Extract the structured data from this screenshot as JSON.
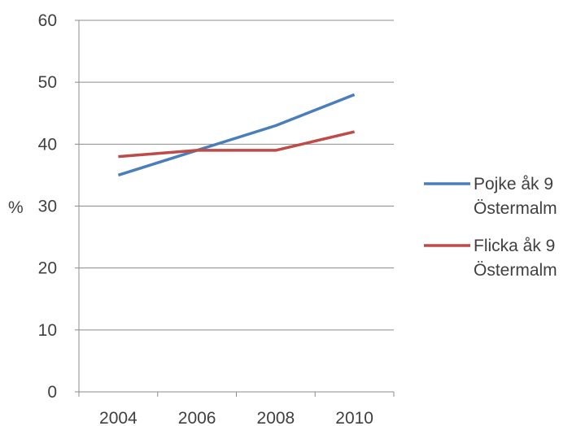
{
  "chart_data": {
    "type": "line",
    "title": "",
    "xlabel": "",
    "ylabel": "%",
    "x": [
      "2004",
      "2006",
      "2008",
      "2010"
    ],
    "ylim": [
      0,
      60
    ],
    "yticks": [
      0,
      10,
      20,
      30,
      40,
      50,
      60
    ],
    "grid": "horizontal",
    "legend_position": "right",
    "series": [
      {
        "name_lines": [
          "Pojke åk 9",
          "Östermalm"
        ],
        "color": "#4A7EBB",
        "values": [
          35,
          39,
          43,
          48
        ]
      },
      {
        "name_lines": [
          "Flicka åk 9",
          "Östermalm"
        ],
        "color": "#BE4B48",
        "values": [
          38,
          39,
          39,
          42
        ]
      }
    ]
  }
}
